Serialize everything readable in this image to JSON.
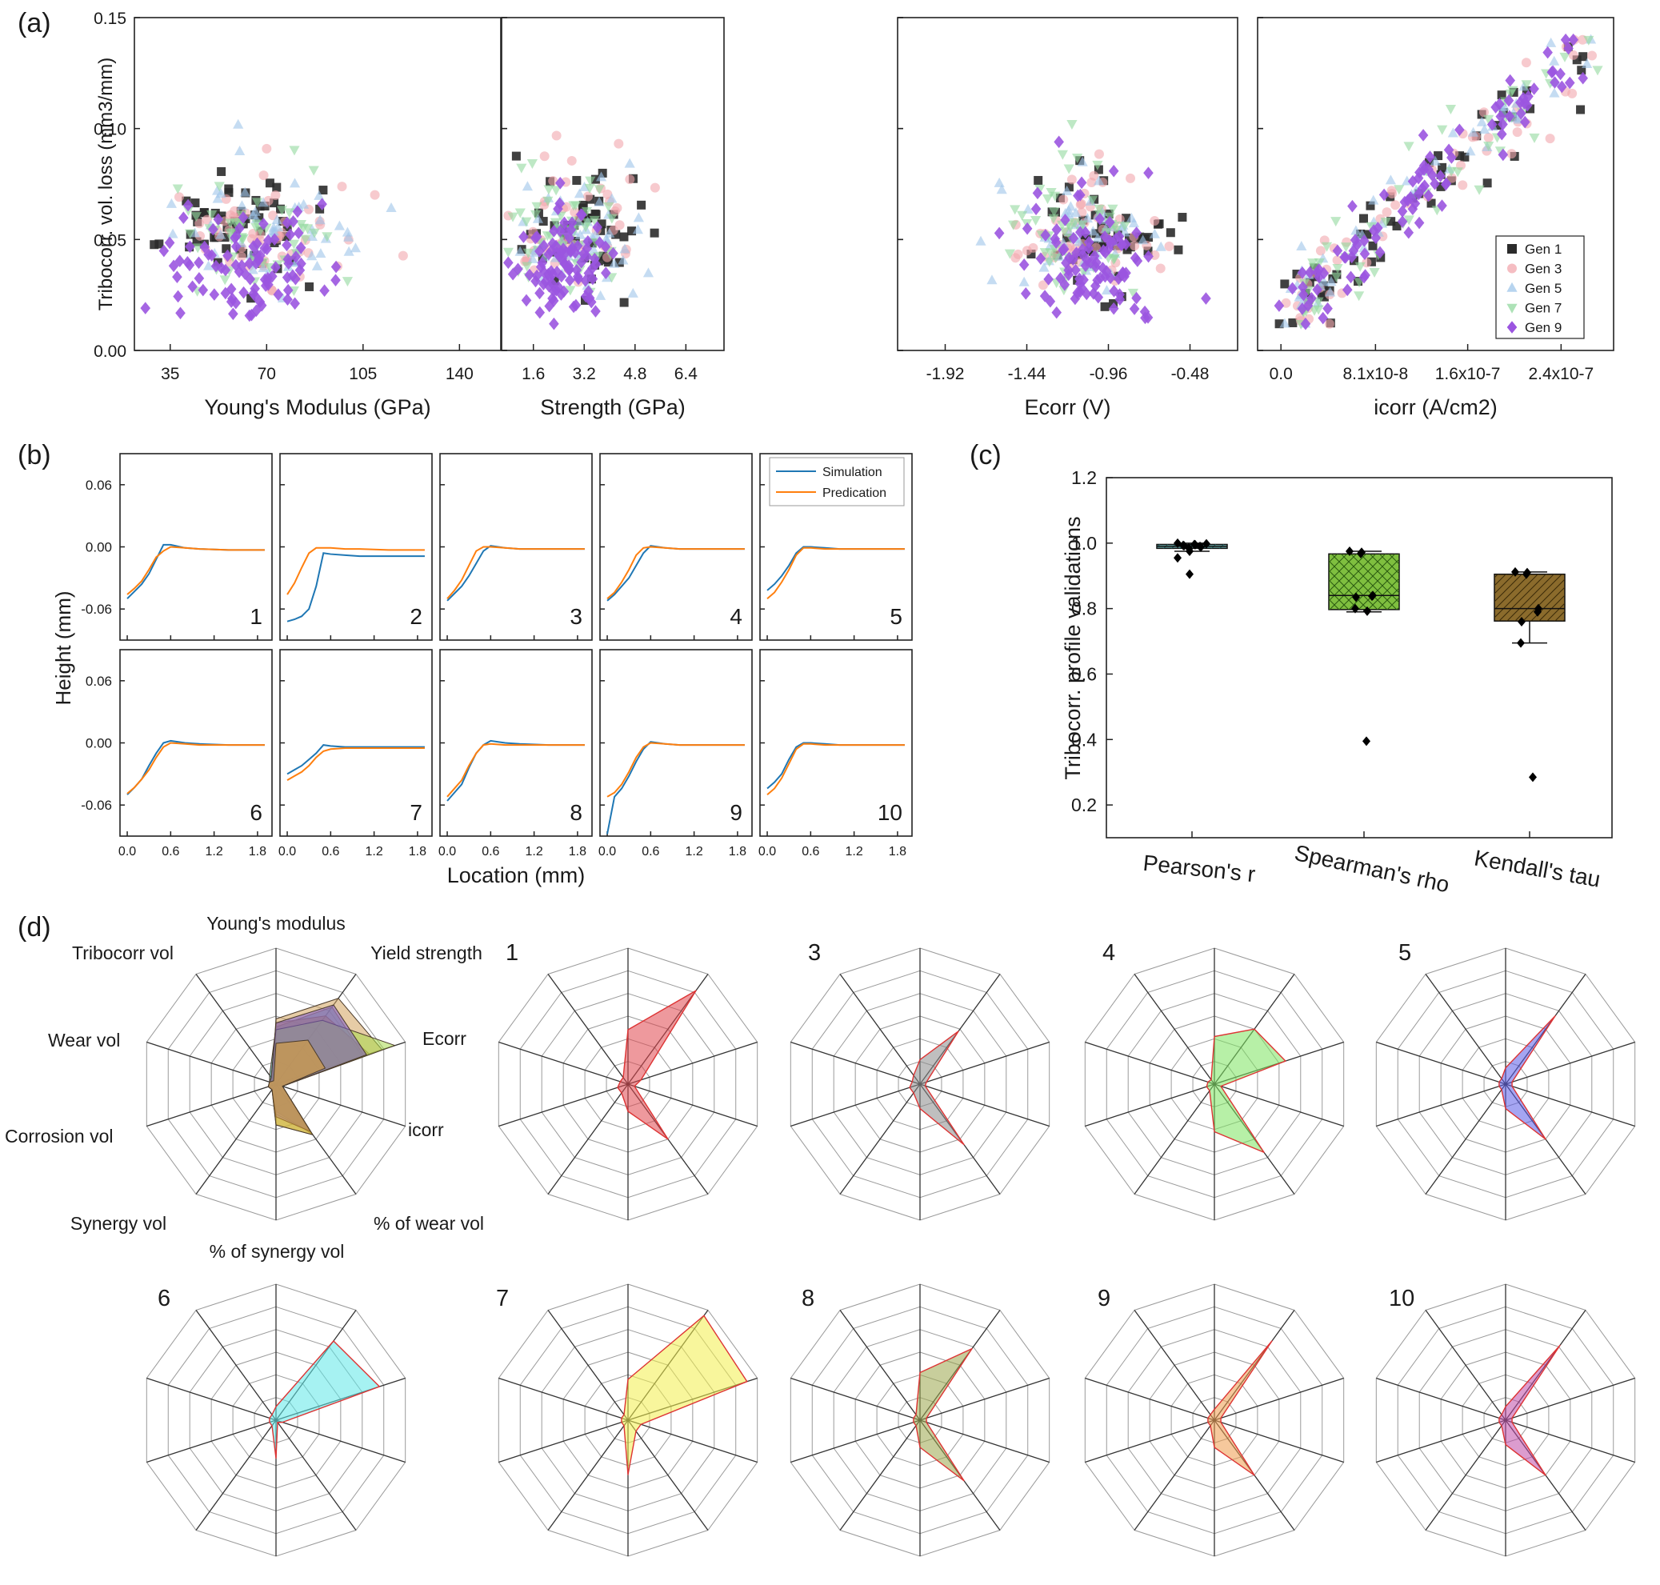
{
  "chart_data": [
    {
      "panel": "(a)",
      "type": "scatter",
      "ylabel": "Tribocorr. vol. loss (mm3/mm)",
      "ylim": [
        0,
        0.15
      ],
      "yticks": [
        "0.00",
        "0.05",
        "0.10",
        "0.15"
      ],
      "legend": {
        "placement": "bottom-right",
        "entries": [
          "Gen 1",
          "Gen 3",
          "Gen 5",
          "Gen 7",
          "Gen 9"
        ]
      },
      "series_styles": [
        {
          "name": "Gen 1",
          "marker": "square",
          "color": "#2b2b2b"
        },
        {
          "name": "Gen 3",
          "marker": "circle",
          "color": "#f2a7ad"
        },
        {
          "name": "Gen 5",
          "marker": "triangle-up",
          "color": "#9fc5ea"
        },
        {
          "name": "Gen 7",
          "marker": "triangle-down",
          "color": "#92d89f"
        },
        {
          "name": "Gen 9",
          "marker": "diamond",
          "color": "#9b55e0"
        }
      ],
      "subplots": [
        {
          "xlabel": "Young's Modulus (GPa)",
          "xlim": [
            22,
            155
          ],
          "xticks": [
            35,
            70,
            105,
            140
          ],
          "xtick_labels": [
            "35",
            "70",
            "105",
            "140"
          ]
        },
        {
          "xlabel": "Strength (GPa)",
          "xlim": [
            0.6,
            7.6
          ],
          "xticks": [
            1.6,
            3.2,
            4.8,
            6.4
          ],
          "xtick_labels": [
            "1.6",
            "3.2",
            "4.8",
            "6.4"
          ]
        },
        {
          "xlabel": "Ecorr (V)",
          "xlim": [
            -2.2,
            -0.2
          ],
          "xticks": [
            -1.92,
            -1.44,
            -0.96,
            -0.48
          ],
          "xtick_labels": [
            "-1.92",
            "-1.44",
            "-0.96",
            "-0.48"
          ]
        },
        {
          "xlabel": "icorr (A/cm2)",
          "xlim": [
            -2e-08,
            2.85e-07
          ],
          "xticks": [
            0,
            8.1e-08,
            1.6e-07,
            2.4e-07
          ],
          "xtick_labels": [
            "0.0",
            "8.1x10-8",
            "1.6x10-7",
            "2.4x10-7"
          ]
        }
      ]
    },
    {
      "panel": "(b)",
      "type": "line",
      "ylabel": "Height (mm)",
      "xlabel": "Location (mm)",
      "xlim": [
        -0.1,
        2.0
      ],
      "ylim": [
        -0.09,
        0.09
      ],
      "xticks": [
        "0.0",
        "0.6",
        "1.2",
        "1.8"
      ],
      "yticks": [
        "0.06",
        "0.00",
        "-0.06"
      ],
      "legend": [
        "Simulation",
        "Predication"
      ],
      "colors": {
        "Simulation": "#1f77b4",
        "Predication": "#ff7f0e"
      },
      "subplot_labels": [
        "1",
        "2",
        "3",
        "4",
        "5",
        "6",
        "7",
        "8",
        "9",
        "10"
      ],
      "x": [
        0,
        0.1,
        0.2,
        0.3,
        0.4,
        0.5,
        0.6,
        0.8,
        1.0,
        1.4,
        1.9
      ],
      "profiles": [
        {
          "sim": [
            -0.05,
            -0.043,
            -0.036,
            -0.026,
            -0.012,
            0.002,
            0.002,
            -0.001,
            -0.002,
            -0.003,
            -0.003
          ],
          "pred": [
            -0.046,
            -0.04,
            -0.033,
            -0.022,
            -0.01,
            -0.004,
            0.0,
            -0.001,
            -0.002,
            -0.003,
            -0.003
          ]
        },
        {
          "sim": [
            -0.072,
            -0.07,
            -0.067,
            -0.06,
            -0.038,
            -0.006,
            -0.007,
            -0.008,
            -0.009,
            -0.009,
            -0.009
          ],
          "pred": [
            -0.046,
            -0.035,
            -0.02,
            -0.006,
            -0.001,
            -0.001,
            -0.001,
            -0.002,
            -0.002,
            -0.003,
            -0.003
          ]
        },
        {
          "sim": [
            -0.052,
            -0.045,
            -0.038,
            -0.028,
            -0.016,
            -0.004,
            0.001,
            -0.001,
            -0.002,
            -0.002,
            -0.002
          ],
          "pred": [
            -0.05,
            -0.042,
            -0.032,
            -0.018,
            -0.004,
            0.0,
            0.0,
            -0.001,
            -0.002,
            -0.002,
            -0.002
          ]
        },
        {
          "sim": [
            -0.052,
            -0.046,
            -0.038,
            -0.03,
            -0.018,
            -0.006,
            0.001,
            -0.001,
            -0.002,
            -0.002,
            -0.002
          ],
          "pred": [
            -0.05,
            -0.044,
            -0.034,
            -0.022,
            -0.008,
            -0.001,
            0.0,
            -0.001,
            -0.002,
            -0.002,
            -0.002
          ]
        },
        {
          "sim": [
            -0.042,
            -0.036,
            -0.028,
            -0.018,
            -0.006,
            0.0,
            0.0,
            -0.001,
            -0.002,
            -0.002,
            -0.002
          ],
          "pred": [
            -0.05,
            -0.044,
            -0.034,
            -0.022,
            -0.008,
            -0.001,
            -0.001,
            -0.002,
            -0.002,
            -0.002,
            -0.002
          ]
        },
        {
          "sim": [
            -0.05,
            -0.043,
            -0.035,
            -0.022,
            -0.01,
            0.0,
            0.002,
            0.0,
            -0.001,
            -0.002,
            -0.002
          ],
          "pred": [
            -0.049,
            -0.043,
            -0.035,
            -0.026,
            -0.014,
            -0.004,
            0.0,
            -0.001,
            -0.002,
            -0.002,
            -0.002
          ]
        },
        {
          "sim": [
            -0.03,
            -0.026,
            -0.022,
            -0.016,
            -0.01,
            -0.002,
            -0.003,
            -0.004,
            -0.004,
            -0.004,
            -0.004
          ],
          "pred": [
            -0.036,
            -0.032,
            -0.028,
            -0.022,
            -0.014,
            -0.008,
            -0.006,
            -0.005,
            -0.005,
            -0.005,
            -0.005
          ]
        },
        {
          "sim": [
            -0.056,
            -0.048,
            -0.04,
            -0.024,
            -0.01,
            -0.002,
            0.002,
            0.0,
            -0.001,
            -0.002,
            -0.002
          ],
          "pred": [
            -0.052,
            -0.044,
            -0.036,
            -0.022,
            -0.01,
            -0.002,
            -0.001,
            -0.002,
            -0.002,
            -0.002,
            -0.002
          ]
        },
        {
          "sim": [
            -0.088,
            -0.052,
            -0.044,
            -0.032,
            -0.018,
            -0.006,
            0.001,
            -0.001,
            -0.002,
            -0.002,
            -0.002
          ],
          "pred": [
            -0.052,
            -0.048,
            -0.04,
            -0.028,
            -0.014,
            -0.004,
            0.0,
            -0.001,
            -0.002,
            -0.002,
            -0.002
          ]
        },
        {
          "sim": [
            -0.044,
            -0.038,
            -0.03,
            -0.016,
            -0.004,
            0.0,
            0.0,
            -0.001,
            -0.002,
            -0.002,
            -0.002
          ],
          "pred": [
            -0.05,
            -0.044,
            -0.034,
            -0.02,
            -0.006,
            -0.001,
            -0.001,
            -0.002,
            -0.002,
            -0.002,
            -0.002
          ]
        }
      ]
    },
    {
      "panel": "(c)",
      "type": "box",
      "ylabel": "Tribocorr. profile validations",
      "ylim": [
        0.1,
        1.2
      ],
      "yticks": [
        "0.2",
        "0.4",
        "0.6",
        "0.8",
        "1.0",
        "1.2"
      ],
      "categories": [
        "Pearson's r",
        "Spearman's rho",
        "Kendall's tau"
      ],
      "boxes": [
        {
          "q1": 0.984,
          "median": 0.99,
          "q3": 0.996,
          "whisker_low": 0.975,
          "whisker_high": 1.0,
          "fill": "#6fb3b2",
          "points": [
            0.955,
            0.975,
            0.985,
            0.988,
            0.99,
            0.992,
            0.993,
            0.995,
            0.996,
            0.998,
            1.0,
            0.905
          ]
        },
        {
          "q1": 0.797,
          "median": 0.84,
          "q3": 0.967,
          "whisker_low": 0.79,
          "whisker_high": 0.975,
          "fill": "#7fbf3f",
          "points": [
            0.975,
            0.972,
            0.968,
            0.84,
            0.838,
            0.835,
            0.8,
            0.792,
            0.395
          ]
        },
        {
          "q1": 0.762,
          "median": 0.8,
          "q3": 0.905,
          "whisker_low": 0.695,
          "whisker_high": 0.912,
          "fill": "#8b6b2c",
          "points": [
            0.912,
            0.91,
            0.905,
            0.8,
            0.79,
            0.76,
            0.695,
            0.285
          ]
        }
      ]
    },
    {
      "panel": "(d)",
      "type": "radar",
      "axes": [
        "Young's modulus",
        "Yield strength",
        "Ecorr",
        "icorr",
        "% of wear vol",
        "% of synergy vol",
        "Synergy vol",
        "Corrosion vol",
        "Wear vol",
        "Tribocorr vol"
      ],
      "rings": 6,
      "overlay_colors": [
        "#2aa8a6",
        "#9c6b1a",
        "#d1a35c",
        "#a8d84a",
        "#7b5bd0",
        "#e0a030"
      ],
      "overlay_values": [
        [
          0.42,
          0.7,
          0.68,
          0.05,
          0.45,
          0.2,
          0.05,
          0.06,
          0.05,
          0.08
        ],
        [
          0.45,
          0.62,
          0.72,
          0.05,
          0.45,
          0.2,
          0.05,
          0.06,
          0.05,
          0.04
        ],
        [
          0.48,
          0.78,
          0.82,
          0.05,
          0.44,
          0.22,
          0.05,
          0.06,
          0.05,
          0.05
        ],
        [
          0.4,
          0.58,
          0.92,
          0.05,
          0.46,
          0.3,
          0.05,
          0.06,
          0.05,
          0.06
        ],
        [
          0.45,
          0.72,
          0.7,
          0.05,
          0.43,
          0.24,
          0.05,
          0.06,
          0.05,
          0.06
        ],
        [
          0.3,
          0.4,
          0.38,
          0.05,
          0.46,
          0.3,
          0.05,
          0.06,
          0.05,
          0.03
        ]
      ],
      "samples": [
        {
          "label": "1",
          "color": "#e0464c",
          "values": [
            0.4,
            0.85,
            0.1,
            0.05,
            0.5,
            0.2,
            0.08,
            0.08,
            0.06,
            0.06
          ]
        },
        {
          "label": "3",
          "color": "#8a8a8a",
          "values": [
            0.18,
            0.48,
            0.05,
            0.04,
            0.55,
            0.18,
            0.08,
            0.08,
            0.06,
            0.08
          ]
        },
        {
          "label": "4",
          "color": "#7be35e",
          "values": [
            0.35,
            0.5,
            0.55,
            0.05,
            0.62,
            0.35,
            0.06,
            0.06,
            0.05,
            0.04
          ]
        },
        {
          "label": "5",
          "color": "#5b5be8",
          "values": [
            0.12,
            0.62,
            0.05,
            0.05,
            0.5,
            0.18,
            0.05,
            0.05,
            0.05,
            0.05
          ]
        },
        {
          "label": "6",
          "color": "#5ce8e8",
          "values": [
            0.1,
            0.72,
            0.8,
            0.05,
            0.02,
            0.28,
            0.05,
            0.05,
            0.05,
            0.05
          ]
        },
        {
          "label": "7",
          "color": "#f2ef4a",
          "values": [
            0.3,
            0.95,
            0.92,
            0.1,
            0.1,
            0.4,
            0.05,
            0.05,
            0.05,
            0.05
          ]
        },
        {
          "label": "8",
          "color": "#9aa54a",
          "values": [
            0.35,
            0.65,
            0.05,
            0.05,
            0.55,
            0.2,
            0.05,
            0.05,
            0.05,
            0.05
          ]
        },
        {
          "label": "9",
          "color": "#ee9a4a",
          "values": [
            0.08,
            0.72,
            0.05,
            0.05,
            0.5,
            0.2,
            0.05,
            0.05,
            0.05,
            0.05
          ]
        },
        {
          "label": "10",
          "color": "#c04aa8",
          "values": [
            0.1,
            0.68,
            0.05,
            0.05,
            0.5,
            0.18,
            0.05,
            0.05,
            0.05,
            0.05
          ]
        }
      ]
    }
  ]
}
